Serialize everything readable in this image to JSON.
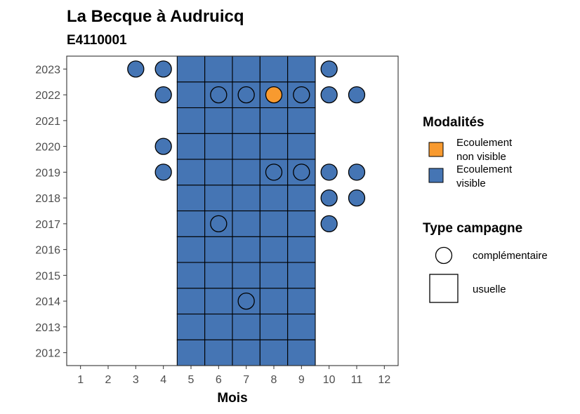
{
  "chart_data": {
    "type": "heatmap",
    "title": "La Becque à Audruicq",
    "subtitle": "E4110001",
    "xlabel": "Mois",
    "ylabel": "",
    "x_ticks": [
      "1",
      "2",
      "3",
      "4",
      "5",
      "6",
      "7",
      "8",
      "9",
      "10",
      "11",
      "12"
    ],
    "y_ticks": [
      "2012",
      "2013",
      "2014",
      "2015",
      "2016",
      "2017",
      "2018",
      "2019",
      "2020",
      "2021",
      "2022",
      "2023"
    ],
    "xlim": [
      0.5,
      12.5
    ],
    "ylim": [
      2011.5,
      2023.5
    ],
    "grid": false,
    "legend_position": "right",
    "colors": {
      "Ecoulement non visible": "#F89A2F",
      "Ecoulement visible": "#4575B4"
    },
    "points": [
      {
        "year": 2012,
        "month": 5,
        "modalite": "Ecoulement visible",
        "campagne": "usuelle"
      },
      {
        "year": 2012,
        "month": 6,
        "modalite": "Ecoulement visible",
        "campagne": "usuelle"
      },
      {
        "year": 2012,
        "month": 7,
        "modalite": "Ecoulement visible",
        "campagne": "usuelle"
      },
      {
        "year": 2012,
        "month": 8,
        "modalite": "Ecoulement visible",
        "campagne": "usuelle"
      },
      {
        "year": 2012,
        "month": 9,
        "modalite": "Ecoulement visible",
        "campagne": "usuelle"
      },
      {
        "year": 2013,
        "month": 5,
        "modalite": "Ecoulement visible",
        "campagne": "usuelle"
      },
      {
        "year": 2013,
        "month": 6,
        "modalite": "Ecoulement visible",
        "campagne": "usuelle"
      },
      {
        "year": 2013,
        "month": 7,
        "modalite": "Ecoulement visible",
        "campagne": "usuelle"
      },
      {
        "year": 2013,
        "month": 8,
        "modalite": "Ecoulement visible",
        "campagne": "usuelle"
      },
      {
        "year": 2013,
        "month": 9,
        "modalite": "Ecoulement visible",
        "campagne": "usuelle"
      },
      {
        "year": 2014,
        "month": 5,
        "modalite": "Ecoulement visible",
        "campagne": "usuelle"
      },
      {
        "year": 2014,
        "month": 6,
        "modalite": "Ecoulement visible",
        "campagne": "usuelle"
      },
      {
        "year": 2014,
        "month": 7,
        "modalite": "Ecoulement visible",
        "campagne": "usuelle"
      },
      {
        "year": 2014,
        "month": 7,
        "modalite": "Ecoulement visible",
        "campagne": "complémentaire"
      },
      {
        "year": 2014,
        "month": 8,
        "modalite": "Ecoulement visible",
        "campagne": "usuelle"
      },
      {
        "year": 2014,
        "month": 9,
        "modalite": "Ecoulement visible",
        "campagne": "usuelle"
      },
      {
        "year": 2015,
        "month": 5,
        "modalite": "Ecoulement visible",
        "campagne": "usuelle"
      },
      {
        "year": 2015,
        "month": 6,
        "modalite": "Ecoulement visible",
        "campagne": "usuelle"
      },
      {
        "year": 2015,
        "month": 7,
        "modalite": "Ecoulement visible",
        "campagne": "usuelle"
      },
      {
        "year": 2015,
        "month": 8,
        "modalite": "Ecoulement visible",
        "campagne": "usuelle"
      },
      {
        "year": 2015,
        "month": 9,
        "modalite": "Ecoulement visible",
        "campagne": "usuelle"
      },
      {
        "year": 2016,
        "month": 5,
        "modalite": "Ecoulement visible",
        "campagne": "usuelle"
      },
      {
        "year": 2016,
        "month": 6,
        "modalite": "Ecoulement visible",
        "campagne": "usuelle"
      },
      {
        "year": 2016,
        "month": 7,
        "modalite": "Ecoulement visible",
        "campagne": "usuelle"
      },
      {
        "year": 2016,
        "month": 8,
        "modalite": "Ecoulement visible",
        "campagne": "usuelle"
      },
      {
        "year": 2016,
        "month": 9,
        "modalite": "Ecoulement visible",
        "campagne": "usuelle"
      },
      {
        "year": 2017,
        "month": 5,
        "modalite": "Ecoulement visible",
        "campagne": "usuelle"
      },
      {
        "year": 2017,
        "month": 6,
        "modalite": "Ecoulement visible",
        "campagne": "usuelle"
      },
      {
        "year": 2017,
        "month": 6,
        "modalite": "Ecoulement visible",
        "campagne": "complémentaire"
      },
      {
        "year": 2017,
        "month": 7,
        "modalite": "Ecoulement visible",
        "campagne": "usuelle"
      },
      {
        "year": 2017,
        "month": 8,
        "modalite": "Ecoulement visible",
        "campagne": "usuelle"
      },
      {
        "year": 2017,
        "month": 9,
        "modalite": "Ecoulement visible",
        "campagne": "usuelle"
      },
      {
        "year": 2017,
        "month": 10,
        "modalite": "Ecoulement visible",
        "campagne": "complémentaire"
      },
      {
        "year": 2018,
        "month": 5,
        "modalite": "Ecoulement visible",
        "campagne": "usuelle"
      },
      {
        "year": 2018,
        "month": 6,
        "modalite": "Ecoulement visible",
        "campagne": "usuelle"
      },
      {
        "year": 2018,
        "month": 7,
        "modalite": "Ecoulement visible",
        "campagne": "usuelle"
      },
      {
        "year": 2018,
        "month": 8,
        "modalite": "Ecoulement visible",
        "campagne": "usuelle"
      },
      {
        "year": 2018,
        "month": 9,
        "modalite": "Ecoulement visible",
        "campagne": "usuelle"
      },
      {
        "year": 2018,
        "month": 10,
        "modalite": "Ecoulement visible",
        "campagne": "complémentaire"
      },
      {
        "year": 2018,
        "month": 11,
        "modalite": "Ecoulement visible",
        "campagne": "complémentaire"
      },
      {
        "year": 2019,
        "month": 4,
        "modalite": "Ecoulement visible",
        "campagne": "complémentaire"
      },
      {
        "year": 2019,
        "month": 5,
        "modalite": "Ecoulement visible",
        "campagne": "usuelle"
      },
      {
        "year": 2019,
        "month": 6,
        "modalite": "Ecoulement visible",
        "campagne": "usuelle"
      },
      {
        "year": 2019,
        "month": 7,
        "modalite": "Ecoulement visible",
        "campagne": "usuelle"
      },
      {
        "year": 2019,
        "month": 8,
        "modalite": "Ecoulement visible",
        "campagne": "usuelle"
      },
      {
        "year": 2019,
        "month": 8,
        "modalite": "Ecoulement visible",
        "campagne": "complémentaire"
      },
      {
        "year": 2019,
        "month": 9,
        "modalite": "Ecoulement visible",
        "campagne": "usuelle"
      },
      {
        "year": 2019,
        "month": 9,
        "modalite": "Ecoulement visible",
        "campagne": "complémentaire"
      },
      {
        "year": 2019,
        "month": 10,
        "modalite": "Ecoulement visible",
        "campagne": "complémentaire"
      },
      {
        "year": 2019,
        "month": 11,
        "modalite": "Ecoulement visible",
        "campagne": "complémentaire"
      },
      {
        "year": 2020,
        "month": 4,
        "modalite": "Ecoulement visible",
        "campagne": "complémentaire"
      },
      {
        "year": 2020,
        "month": 5,
        "modalite": "Ecoulement visible",
        "campagne": "usuelle"
      },
      {
        "year": 2020,
        "month": 6,
        "modalite": "Ecoulement visible",
        "campagne": "usuelle"
      },
      {
        "year": 2020,
        "month": 7,
        "modalite": "Ecoulement visible",
        "campagne": "usuelle"
      },
      {
        "year": 2020,
        "month": 8,
        "modalite": "Ecoulement visible",
        "campagne": "usuelle"
      },
      {
        "year": 2020,
        "month": 9,
        "modalite": "Ecoulement visible",
        "campagne": "usuelle"
      },
      {
        "year": 2021,
        "month": 5,
        "modalite": "Ecoulement visible",
        "campagne": "usuelle"
      },
      {
        "year": 2021,
        "month": 6,
        "modalite": "Ecoulement visible",
        "campagne": "usuelle"
      },
      {
        "year": 2021,
        "month": 7,
        "modalite": "Ecoulement visible",
        "campagne": "usuelle"
      },
      {
        "year": 2021,
        "month": 8,
        "modalite": "Ecoulement visible",
        "campagne": "usuelle"
      },
      {
        "year": 2021,
        "month": 9,
        "modalite": "Ecoulement visible",
        "campagne": "usuelle"
      },
      {
        "year": 2022,
        "month": 4,
        "modalite": "Ecoulement visible",
        "campagne": "complémentaire"
      },
      {
        "year": 2022,
        "month": 5,
        "modalite": "Ecoulement visible",
        "campagne": "usuelle"
      },
      {
        "year": 2022,
        "month": 6,
        "modalite": "Ecoulement visible",
        "campagne": "usuelle"
      },
      {
        "year": 2022,
        "month": 6,
        "modalite": "Ecoulement visible",
        "campagne": "complémentaire"
      },
      {
        "year": 2022,
        "month": 7,
        "modalite": "Ecoulement visible",
        "campagne": "usuelle"
      },
      {
        "year": 2022,
        "month": 7,
        "modalite": "Ecoulement visible",
        "campagne": "complémentaire"
      },
      {
        "year": 2022,
        "month": 8,
        "modalite": "Ecoulement visible",
        "campagne": "usuelle"
      },
      {
        "year": 2022,
        "month": 8,
        "modalite": "Ecoulement non visible",
        "campagne": "complémentaire"
      },
      {
        "year": 2022,
        "month": 9,
        "modalite": "Ecoulement visible",
        "campagne": "usuelle"
      },
      {
        "year": 2022,
        "month": 9,
        "modalite": "Ecoulement visible",
        "campagne": "complémentaire"
      },
      {
        "year": 2022,
        "month": 10,
        "modalite": "Ecoulement visible",
        "campagne": "complémentaire"
      },
      {
        "year": 2022,
        "month": 11,
        "modalite": "Ecoulement visible",
        "campagne": "complémentaire"
      },
      {
        "year": 2023,
        "month": 3,
        "modalite": "Ecoulement visible",
        "campagne": "complémentaire"
      },
      {
        "year": 2023,
        "month": 4,
        "modalite": "Ecoulement visible",
        "campagne": "complémentaire"
      },
      {
        "year": 2023,
        "month": 5,
        "modalite": "Ecoulement visible",
        "campagne": "usuelle"
      },
      {
        "year": 2023,
        "month": 6,
        "modalite": "Ecoulement visible",
        "campagne": "usuelle"
      },
      {
        "year": 2023,
        "month": 7,
        "modalite": "Ecoulement visible",
        "campagne": "usuelle"
      },
      {
        "year": 2023,
        "month": 8,
        "modalite": "Ecoulement visible",
        "campagne": "usuelle"
      },
      {
        "year": 2023,
        "month": 9,
        "modalite": "Ecoulement visible",
        "campagne": "usuelle"
      },
      {
        "year": 2023,
        "month": 10,
        "modalite": "Ecoulement visible",
        "campagne": "complémentaire"
      }
    ],
    "legend": {
      "modalites_title": "Modalités",
      "modalites": [
        {
          "label_line1": "Ecoulement",
          "label_line2": "non visible",
          "color": "#F89A2F"
        },
        {
          "label_line1": "Ecoulement",
          "label_line2": "visible",
          "color": "#4575B4"
        }
      ],
      "campagne_title": "Type campagne",
      "campagnes": [
        {
          "label": "complémentaire",
          "shape": "circle"
        },
        {
          "label": "usuelle",
          "shape": "square"
        }
      ]
    }
  }
}
